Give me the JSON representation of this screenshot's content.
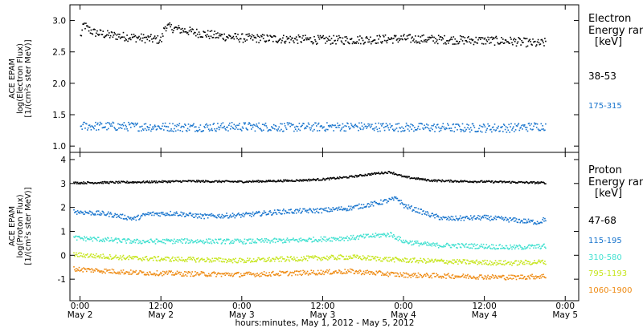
{
  "chart_data": [
    {
      "type": "scatter",
      "panel": "electron",
      "ylabel_lines": [
        "ACE EPAM",
        "log(Electron Flux)",
        "[1/(cm²s ster MeV)]"
      ],
      "legend_title": [
        "Electron",
        "Energy ran",
        "[keV]"
      ],
      "legend_placement": "right",
      "xlim_hours_from_May2_0000": [
        -1.5,
        74
      ],
      "ylim": [
        0.9,
        3.25
      ],
      "yticks": [
        "1.0",
        "1.5",
        "2.0",
        "2.5",
        "3.0"
      ],
      "ytick_values": [
        1.0,
        1.5,
        2.0,
        2.5,
        3.0
      ],
      "series": [
        {
          "name": "38-53",
          "color": "#000000",
          "x_hours": [
            0,
            0.5,
            1,
            2,
            4,
            6,
            8,
            10,
            12,
            12.5,
            14,
            16,
            18,
            20,
            22,
            24,
            28,
            32,
            36,
            40,
            44,
            48,
            52,
            56,
            60,
            64,
            66,
            68,
            69
          ],
          "values": [
            2.75,
            2.95,
            2.88,
            2.82,
            2.78,
            2.76,
            2.74,
            2.72,
            2.7,
            2.92,
            2.88,
            2.84,
            2.8,
            2.77,
            2.75,
            2.73,
            2.72,
            2.71,
            2.7,
            2.7,
            2.71,
            2.72,
            2.71,
            2.7,
            2.69,
            2.68,
            2.66,
            2.64,
            2.66
          ]
        },
        {
          "name": "175-315",
          "color": "#1874cd",
          "x_hours": [
            0,
            8,
            16,
            24,
            32,
            40,
            48,
            56,
            64,
            69
          ],
          "values": [
            1.33,
            1.32,
            1.31,
            1.32,
            1.31,
            1.32,
            1.31,
            1.3,
            1.3,
            1.33
          ]
        }
      ]
    },
    {
      "type": "scatter",
      "panel": "proton",
      "ylabel_lines": [
        "ACE EPAM",
        "log(Proton Flux)",
        "[1/(cm²s ster MeV)]"
      ],
      "legend_title": [
        "Proton",
        "Energy ran",
        "[keV]"
      ],
      "legend_placement": "right",
      "xlim_hours_from_May2_0000": [
        -1.5,
        74
      ],
      "xticks": [
        {
          "time": "0:00",
          "date": "May 2"
        },
        {
          "time": "12:00",
          "date": "May 2"
        },
        {
          "time": "0:00",
          "date": "May 3"
        },
        {
          "time": "12:00",
          "date": "May 3"
        },
        {
          "time": "0:00",
          "date": "May 4"
        },
        {
          "time": "12:00",
          "date": "May 4"
        },
        {
          "time": "0:00",
          "date": "May 5"
        }
      ],
      "xtick_hours": [
        0,
        12,
        24,
        36,
        48,
        60,
        72
      ],
      "xlabel": "hours:minutes, May  1, 2012 - May  5, 2012",
      "ylim": [
        -1.9,
        4.3
      ],
      "yticks": [
        "-1",
        "0",
        "1",
        "2",
        "3",
        "4"
      ],
      "ytick_values": [
        -1,
        0,
        1,
        2,
        3,
        4
      ],
      "series": [
        {
          "name": "47-68",
          "color": "#000000",
          "x_hours": [
            -1,
            8,
            16,
            24,
            32,
            36,
            40,
            44,
            46,
            48,
            52,
            56,
            60,
            64,
            69
          ],
          "values": [
            3.05,
            3.08,
            3.12,
            3.1,
            3.15,
            3.2,
            3.3,
            3.45,
            3.5,
            3.3,
            3.15,
            3.12,
            3.1,
            3.08,
            3.05
          ]
        },
        {
          "name": "115-195",
          "color": "#1874cd",
          "x_hours": [
            -1,
            4,
            8,
            10,
            14,
            18,
            24,
            30,
            36,
            40,
            44,
            47,
            48,
            52,
            54,
            60,
            64,
            68,
            69
          ],
          "values": [
            1.85,
            1.75,
            1.55,
            1.75,
            1.78,
            1.65,
            1.7,
            1.85,
            1.9,
            2.0,
            2.2,
            2.4,
            2.1,
            1.7,
            1.55,
            1.6,
            1.5,
            1.4,
            1.55
          ]
        },
        {
          "name": "310-580",
          "color": "#40e0d0",
          "x_hours": [
            -1,
            8,
            16,
            24,
            32,
            40,
            46,
            48,
            52,
            60,
            64,
            69
          ],
          "values": [
            0.75,
            0.6,
            0.62,
            0.6,
            0.65,
            0.75,
            0.9,
            0.6,
            0.45,
            0.4,
            0.35,
            0.4
          ]
        },
        {
          "name": "795-1193",
          "color": "#c6e51c",
          "x_hours": [
            -1,
            8,
            16,
            24,
            32,
            40,
            48,
            56,
            64,
            69
          ],
          "values": [
            0.05,
            -0.1,
            -0.15,
            -0.2,
            -0.12,
            -0.05,
            -0.18,
            -0.25,
            -0.3,
            -0.25
          ]
        },
        {
          "name": "1060-1900",
          "color": "#ee8a12",
          "x_hours": [
            -1,
            8,
            16,
            24,
            32,
            40,
            48,
            56,
            64,
            69
          ],
          "values": [
            -0.55,
            -0.7,
            -0.75,
            -0.78,
            -0.72,
            -0.65,
            -0.8,
            -0.85,
            -0.9,
            -0.85
          ]
        }
      ]
    }
  ]
}
